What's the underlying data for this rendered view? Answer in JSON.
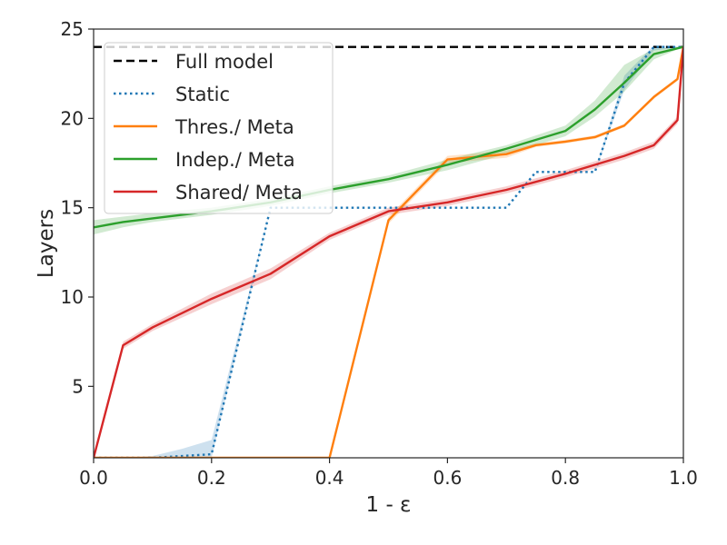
{
  "chart_data": {
    "type": "line",
    "title": "",
    "xlabel": "1 - ε",
    "ylabel": "Layers",
    "xlim": [
      0.0,
      1.0
    ],
    "ylim": [
      1,
      25
    ],
    "xticks": [
      0.0,
      0.2,
      0.4,
      0.6,
      0.8,
      1.0
    ],
    "xtick_labels": [
      "0.0",
      "0.2",
      "0.4",
      "0.6",
      "0.8",
      "1.0"
    ],
    "yticks": [
      5,
      10,
      15,
      20,
      25
    ],
    "ytick_labels": [
      "5",
      "10",
      "15",
      "20",
      "25"
    ],
    "grid": false,
    "legend_position": "top-left",
    "series": [
      {
        "name": "Full model",
        "color": "#000000",
        "style": "dashed",
        "x": [
          0.0,
          1.0
        ],
        "y": [
          24,
          24
        ]
      },
      {
        "name": "Static",
        "color": "#1f77b4",
        "style": "dotted",
        "x": [
          0.0,
          0.05,
          0.1,
          0.15,
          0.2,
          0.3,
          0.35,
          0.4,
          0.45,
          0.5,
          0.55,
          0.6,
          0.65,
          0.7,
          0.75,
          0.8,
          0.85,
          0.9,
          0.95,
          1.0
        ],
        "y": [
          1,
          1,
          1,
          1.1,
          1.2,
          15,
          15,
          15,
          15,
          15,
          15,
          15,
          15,
          15,
          17,
          17,
          17,
          22,
          24,
          24
        ],
        "band_lower": [
          1,
          1,
          1,
          1.0,
          1.0,
          15,
          15,
          15,
          15,
          15,
          15,
          15,
          15,
          15,
          17,
          17,
          17,
          21.6,
          23.8,
          24
        ],
        "band_upper": [
          1,
          1,
          1.1,
          1.5,
          2.0,
          15,
          15,
          15,
          15,
          15,
          15,
          15,
          15,
          15,
          17,
          17,
          17,
          22.4,
          24.1,
          24
        ]
      },
      {
        "name": "Thres./ Meta",
        "color": "#ff7f0e",
        "style": "solid",
        "x": [
          0.0,
          0.1,
          0.2,
          0.3,
          0.4,
          0.5,
          0.6,
          0.7,
          0.75,
          0.8,
          0.85,
          0.9,
          0.95,
          0.99,
          1.0
        ],
        "y": [
          1,
          1,
          1,
          1,
          1,
          14.3,
          17.7,
          18.0,
          18.5,
          18.7,
          18.95,
          19.6,
          21.2,
          22.2,
          24
        ],
        "band_lower": [
          1,
          1,
          1,
          1,
          1,
          14.1,
          17.5,
          17.8,
          18.4,
          18.6,
          18.85,
          19.5,
          21.1,
          22.1,
          24
        ],
        "band_upper": [
          1,
          1,
          1,
          1,
          1,
          14.5,
          17.9,
          18.2,
          18.6,
          18.8,
          19.05,
          19.7,
          21.3,
          22.3,
          24
        ]
      },
      {
        "name": "Indep./ Meta",
        "color": "#2ca02c",
        "style": "solid",
        "x": [
          0.0,
          0.05,
          0.1,
          0.2,
          0.3,
          0.4,
          0.5,
          0.6,
          0.7,
          0.8,
          0.85,
          0.9,
          0.95,
          1.0
        ],
        "y": [
          13.9,
          14.2,
          14.4,
          14.8,
          15.3,
          16.0,
          16.6,
          17.4,
          18.3,
          19.3,
          20.5,
          22.0,
          23.6,
          24.0
        ],
        "band_lower": [
          13.5,
          13.9,
          14.2,
          14.6,
          15.1,
          15.8,
          16.4,
          17.1,
          18.0,
          19.0,
          20.1,
          21.5,
          23.3,
          24.0
        ],
        "band_upper": [
          14.3,
          14.5,
          14.7,
          15.0,
          15.5,
          16.2,
          16.8,
          17.7,
          18.5,
          19.6,
          21.0,
          23.0,
          23.9,
          24.0
        ]
      },
      {
        "name": "Shared/ Meta",
        "color": "#d62728",
        "style": "solid",
        "x": [
          0.0,
          0.05,
          0.1,
          0.2,
          0.3,
          0.4,
          0.5,
          0.6,
          0.7,
          0.8,
          0.9,
          0.95,
          0.99,
          1.0
        ],
        "y": [
          1,
          7.3,
          8.3,
          9.9,
          11.3,
          13.4,
          14.8,
          15.3,
          16.0,
          16.9,
          17.9,
          18.5,
          19.9,
          24
        ],
        "band_lower": [
          1,
          7.1,
          8.1,
          9.6,
          11.0,
          13.2,
          14.6,
          15.1,
          15.8,
          16.7,
          17.7,
          18.3,
          19.7,
          24
        ],
        "band_upper": [
          1,
          7.5,
          8.5,
          10.2,
          11.6,
          13.6,
          15.0,
          15.5,
          16.2,
          17.1,
          18.1,
          18.7,
          20.1,
          24
        ]
      }
    ]
  }
}
